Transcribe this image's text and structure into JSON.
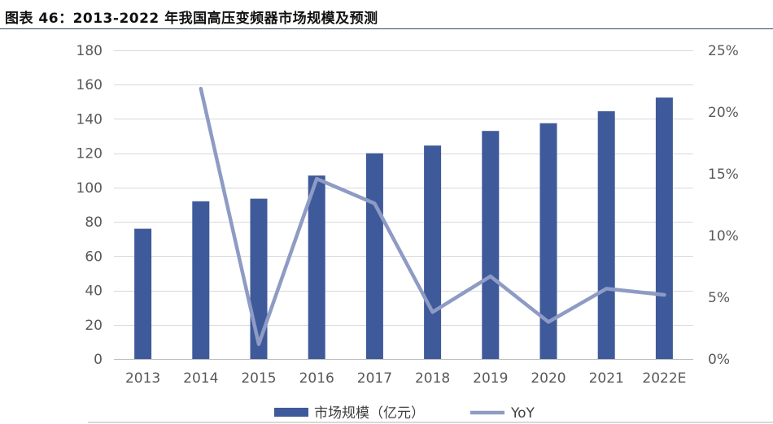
{
  "header": {
    "title": "图表 46：2013-2022 年我国高压变频器市场规模及预测"
  },
  "chart_data": {
    "type": "bar",
    "categories": [
      "2013",
      "2014",
      "2015",
      "2016",
      "2017",
      "2018",
      "2019",
      "2020",
      "2021",
      "2022E"
    ],
    "series": [
      {
        "name": "市场规模（亿元）",
        "type": "bar",
        "axis": "left",
        "color": "#3f5a9a",
        "values": [
          76,
          92,
          93.5,
          107,
          120,
          124.5,
          133,
          137.5,
          144.5,
          152.5
        ]
      },
      {
        "name": "YoY",
        "type": "line",
        "axis": "right",
        "color": "#8e9bc4",
        "values": [
          null,
          21.9,
          1.2,
          14.6,
          12.6,
          3.8,
          6.7,
          3.0,
          5.7,
          5.2
        ]
      }
    ],
    "y_left": {
      "min": 0,
      "max": 180,
      "step": 20,
      "ticks": [
        "0",
        "20",
        "40",
        "60",
        "80",
        "100",
        "120",
        "140",
        "160",
        "180"
      ]
    },
    "y_right": {
      "min": 0,
      "max": 25,
      "step": 5,
      "ticks": [
        "0%",
        "5%",
        "10%",
        "15%",
        "20%",
        "25%"
      ]
    },
    "grid": true,
    "legend": {
      "position": "bottom"
    }
  }
}
